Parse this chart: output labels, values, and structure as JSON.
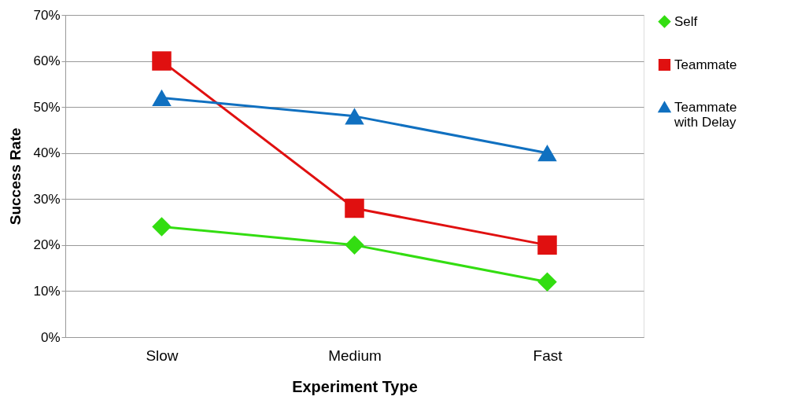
{
  "chart_data": {
    "type": "line",
    "xlabel": "Experiment Type",
    "ylabel": "Success Rate",
    "categories": [
      "Slow",
      "Medium",
      "Fast"
    ],
    "series": [
      {
        "name": "Self",
        "color": "#33dd11",
        "marker": "diamond",
        "values": [
          24,
          20,
          12
        ]
      },
      {
        "name": "Teammate",
        "color": "#e01010",
        "marker": "square",
        "values": [
          60,
          28,
          20
        ]
      },
      {
        "name": "Teammate with Delay",
        "color": "#1070c0",
        "marker": "triangle",
        "values": [
          52,
          48,
          40
        ]
      }
    ],
    "ylim": [
      0,
      70
    ],
    "yticks": [
      {
        "value": 0,
        "label": "0%"
      },
      {
        "value": 10,
        "label": "10%"
      },
      {
        "value": 20,
        "label": "20%"
      },
      {
        "value": 30,
        "label": "30%"
      },
      {
        "value": 40,
        "label": "40%"
      },
      {
        "value": 50,
        "label": "50%"
      },
      {
        "value": 60,
        "label": "60%"
      },
      {
        "value": 70,
        "label": "70%"
      }
    ],
    "grid": "y",
    "legend": "right",
    "line_style": "solid"
  }
}
